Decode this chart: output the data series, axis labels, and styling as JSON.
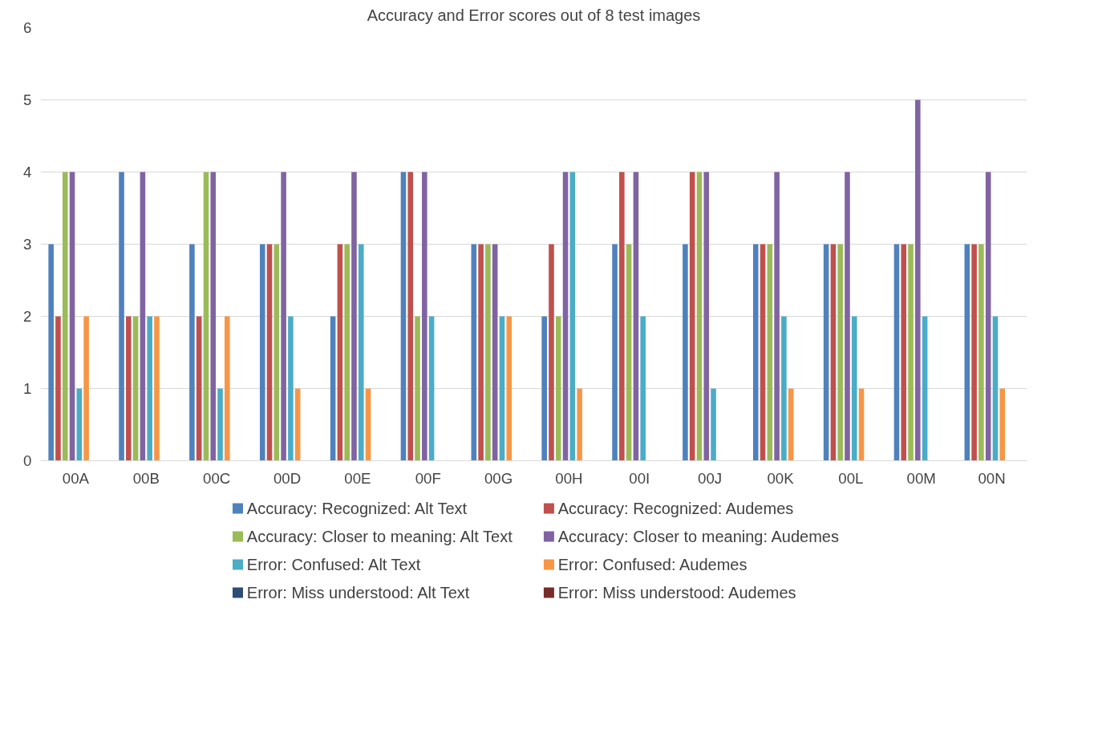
{
  "chart_data": {
    "type": "bar",
    "title": "Accuracy and Error scores out of 8 test images",
    "categories": [
      "00A",
      "00B",
      "00C",
      "00D",
      "00E",
      "00F",
      "00G",
      "00H",
      "00I",
      "00J",
      "00K",
      "00L",
      "00M",
      "00N"
    ],
    "series": [
      {
        "name": "Accuracy: Recognized: Alt Text",
        "color": "#4f81bd",
        "values": [
          3,
          4,
          3,
          3,
          2,
          4,
          3,
          2,
          3,
          3,
          3,
          3,
          3,
          3
        ]
      },
      {
        "name": "Accuracy: Recognized: Audemes",
        "color": "#c0504d",
        "values": [
          2,
          2,
          2,
          3,
          3,
          4,
          3,
          3,
          4,
          4,
          3,
          3,
          3,
          3
        ]
      },
      {
        "name": "Accuracy: Closer to meaning: Alt Text",
        "color": "#9bbb59",
        "values": [
          4,
          2,
          4,
          3,
          3,
          2,
          3,
          2,
          3,
          4,
          3,
          3,
          3,
          3
        ]
      },
      {
        "name": "Accuracy: Closer to meaning: Audemes",
        "color": "#8064a2",
        "values": [
          4,
          4,
          4,
          4,
          4,
          4,
          3,
          4,
          4,
          4,
          4,
          4,
          5,
          4
        ]
      },
      {
        "name": "Error:  Confused: Alt Text",
        "color": "#4bacc6",
        "values": [
          1,
          2,
          1,
          2,
          3,
          2,
          2,
          4,
          2,
          1,
          2,
          2,
          2,
          2
        ]
      },
      {
        "name": "Error:  Confused: Audemes",
        "color": "#f79646",
        "values": [
          2,
          2,
          2,
          1,
          1,
          0,
          2,
          1,
          0,
          0,
          1,
          1,
          0,
          1
        ]
      },
      {
        "name": "Error:  Miss understood: Alt Text",
        "color": "#2c4d75",
        "values": [
          0,
          0,
          0,
          0,
          0,
          0,
          0,
          0,
          0,
          0,
          0,
          0,
          0,
          0
        ]
      },
      {
        "name": "Error:  Miss understood: Audemes",
        "color": "#772c2a",
        "values": [
          0,
          0,
          0,
          0,
          0,
          0,
          0,
          0,
          0,
          0,
          0,
          0,
          0,
          0
        ]
      }
    ],
    "ylim": [
      0,
      6
    ],
    "yticks": [
      0,
      1,
      2,
      3,
      4,
      5,
      6
    ],
    "grid": "y",
    "legend": "bottom"
  }
}
